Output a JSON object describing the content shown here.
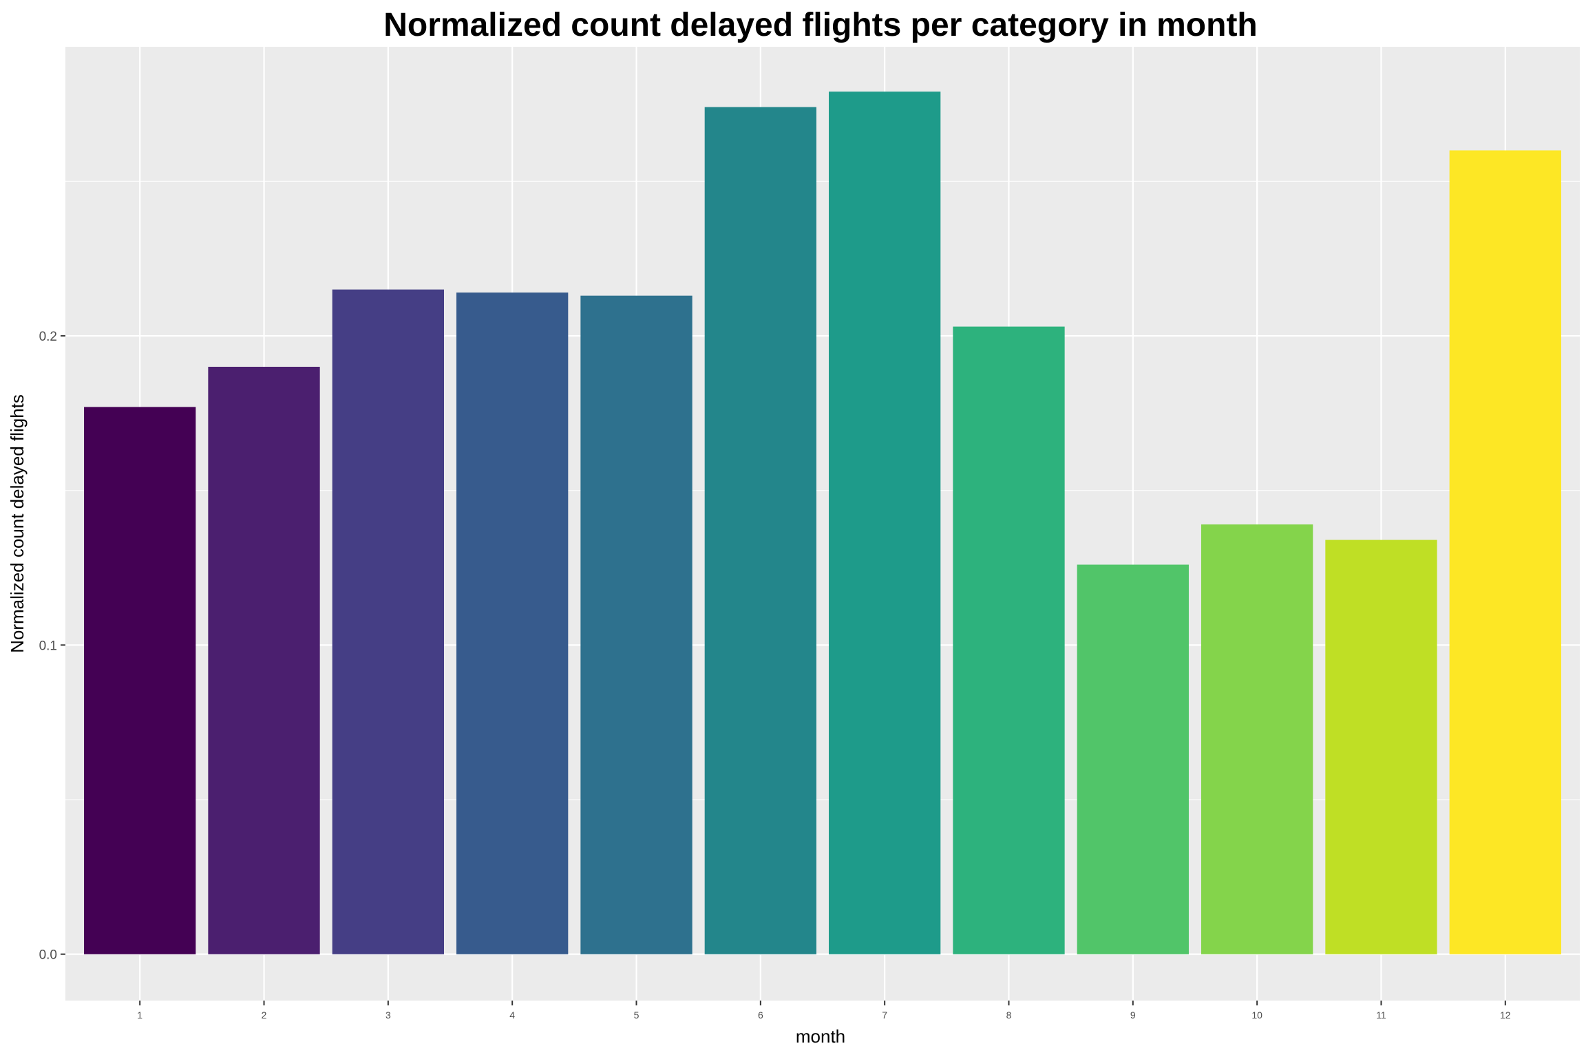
{
  "chart_data": {
    "type": "bar",
    "title": "Normalized count delayed flights per category in month",
    "xlabel": "month",
    "ylabel": "Normalized count delayed flights",
    "categories": [
      "1",
      "2",
      "3",
      "4",
      "5",
      "6",
      "7",
      "8",
      "9",
      "10",
      "11",
      "12"
    ],
    "values": [
      0.177,
      0.19,
      0.215,
      0.214,
      0.213,
      0.274,
      0.279,
      0.203,
      0.126,
      0.139,
      0.134,
      0.26
    ],
    "colors": [
      "#440154",
      "#4b1f6f",
      "#453e85",
      "#375b8d",
      "#2e718e",
      "#23868b",
      "#1e9b8a",
      "#2db27d",
      "#51c569",
      "#84d44b",
      "#bfdf25",
      "#fde725"
    ],
    "yticks": [
      "0.0",
      "0.1",
      "0.2"
    ],
    "ytick_values": [
      0.0,
      0.1,
      0.2
    ],
    "ylim": [
      -0.015,
      0.2935
    ],
    "grid": true,
    "panel_background": "#ebebeb",
    "grid_color": "#ffffff"
  }
}
